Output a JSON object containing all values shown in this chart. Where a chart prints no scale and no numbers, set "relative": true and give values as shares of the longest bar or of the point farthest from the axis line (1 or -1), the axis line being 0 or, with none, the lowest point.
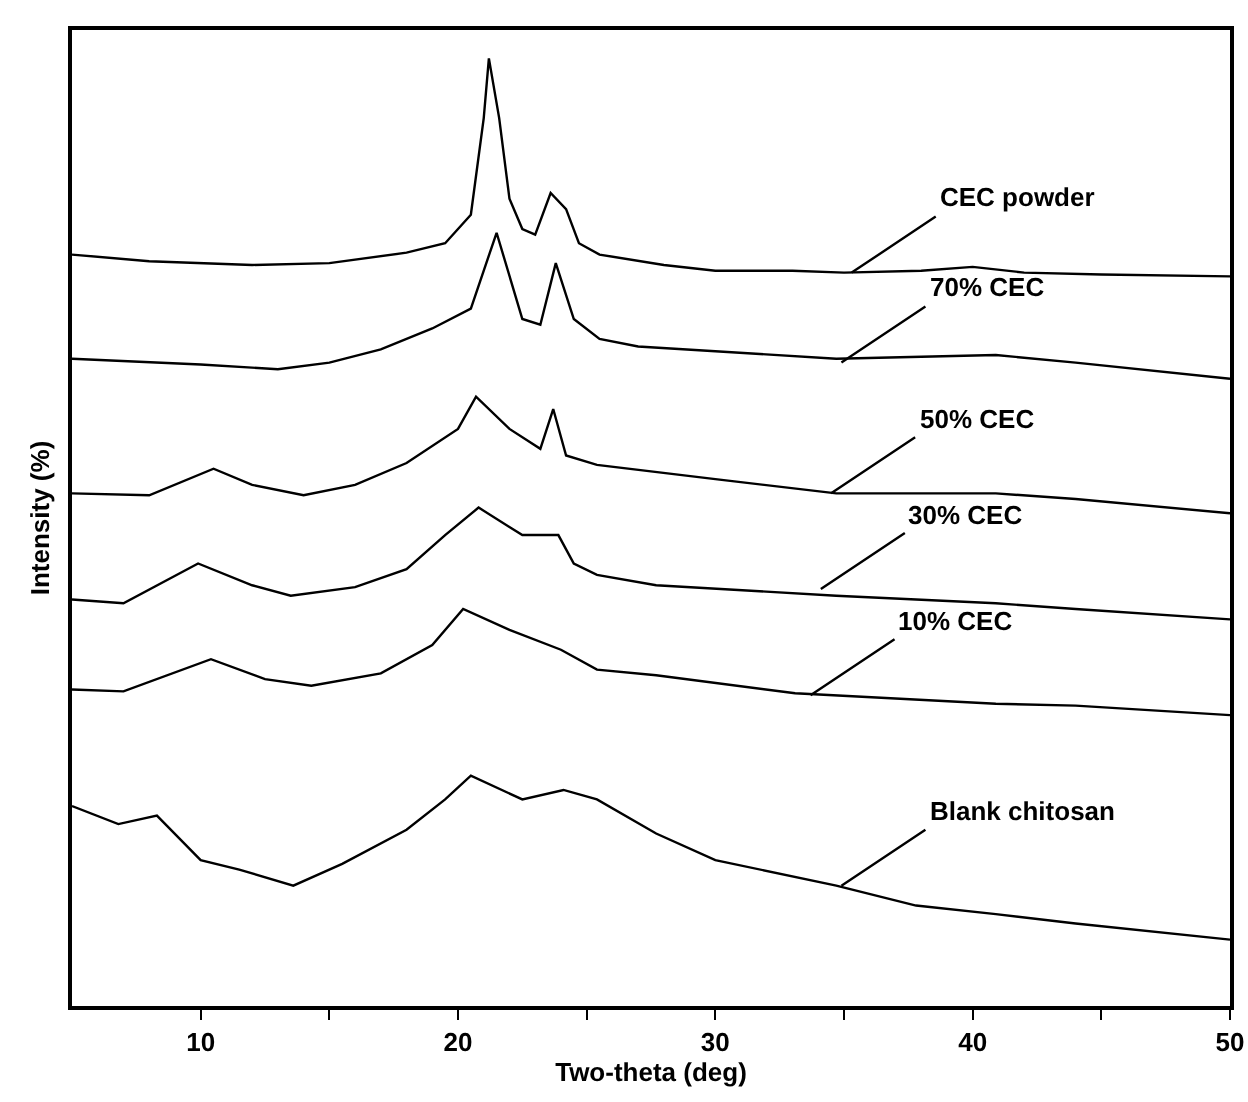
{
  "chart_data": {
    "type": "line",
    "xlabel": "Two-theta (deg)",
    "ylabel": "Intensity (%)",
    "relative": true,
    "xlim": [
      5,
      50
    ],
    "xticks": [
      10,
      {
        "value": 15,
        "label": null
      },
      20,
      {
        "value": 25,
        "label": null
      },
      30,
      {
        "value": 35,
        "label": null
      },
      40,
      {
        "value": 45,
        "label": null
      },
      50
    ],
    "grid": false,
    "marker": "none",
    "line_style": "solid",
    "series": [
      {
        "color": "#000000",
        "x": [
          5,
          8,
          12,
          15,
          18,
          19.5,
          20.5,
          21.0,
          21.2,
          21.6,
          22.0,
          22.5,
          23.0,
          23.6,
          24.2,
          24.7,
          25.5,
          28,
          30,
          33,
          35,
          38,
          40,
          42,
          45,
          50
        ],
        "values": [
          0.793,
          0.786,
          0.782,
          0.784,
          0.795,
          0.805,
          0.835,
          0.937,
          1.0,
          0.937,
          0.852,
          0.82,
          0.814,
          0.858,
          0.841,
          0.805,
          0.793,
          0.782,
          0.776,
          0.776,
          0.774,
          0.776,
          0.78,
          0.774,
          0.772,
          0.77
        ]
      },
      {
        "color": "#000000",
        "x": [
          5,
          10,
          13,
          15,
          17,
          19,
          20.5,
          21.5,
          22.5,
          23.2,
          23.8,
          24.5,
          25.5,
          27,
          30,
          34.7,
          40.9,
          44,
          50
        ],
        "values": [
          0.683,
          0.677,
          0.672,
          0.679,
          0.693,
          0.715,
          0.736,
          0.816,
          0.725,
          0.719,
          0.784,
          0.725,
          0.704,
          0.696,
          0.691,
          0.683,
          0.687,
          0.679,
          0.662
        ]
      },
      {
        "color": "#000000",
        "x": [
          5,
          8,
          10.5,
          12,
          14,
          16,
          18,
          20,
          20.7,
          22,
          23.2,
          23.7,
          24.2,
          25.4,
          30,
          34.7,
          40.9,
          44,
          50
        ],
        "values": [
          0.541,
          0.539,
          0.567,
          0.55,
          0.539,
          0.55,
          0.573,
          0.609,
          0.643,
          0.609,
          0.588,
          0.63,
          0.581,
          0.571,
          0.556,
          0.541,
          0.541,
          0.535,
          0.52
        ]
      },
      {
        "color": "#000000",
        "x": [
          5,
          7,
          9.9,
          12,
          13.5,
          16,
          18,
          19.5,
          20.8,
          22.5,
          23.9,
          24.5,
          25.4,
          27.7,
          34.7,
          40.9,
          44,
          50
        ],
        "values": [
          0.429,
          0.425,
          0.467,
          0.444,
          0.433,
          0.442,
          0.461,
          0.497,
          0.526,
          0.497,
          0.497,
          0.467,
          0.455,
          0.444,
          0.433,
          0.425,
          0.419,
          0.408
        ]
      },
      {
        "color": "#000000",
        "x": [
          5,
          7,
          10.4,
          12.5,
          14.3,
          17,
          19,
          20.2,
          22,
          24,
          25.4,
          27.7,
          33.1,
          40.9,
          44,
          50
        ],
        "values": [
          0.334,
          0.332,
          0.366,
          0.345,
          0.338,
          0.351,
          0.381,
          0.419,
          0.397,
          0.376,
          0.355,
          0.349,
          0.33,
          0.319,
          0.317,
          0.307
        ]
      },
      {
        "color": "#000000",
        "x": [
          5,
          6.8,
          8.3,
          10,
          11.5,
          13.6,
          15.5,
          18,
          19.5,
          20.5,
          22.5,
          24.1,
          25.4,
          27.7,
          30,
          34.7,
          37.8,
          40.9,
          44,
          50
        ],
        "values": [
          0.211,
          0.192,
          0.201,
          0.154,
          0.144,
          0.127,
          0.15,
          0.186,
          0.218,
          0.243,
          0.218,
          0.228,
          0.218,
          0.182,
          0.154,
          0.127,
          0.106,
          0.097,
          0.087,
          0.07
        ]
      }
    ],
    "annotations": [
      {
        "text": "CEC powder",
        "x": 35.3,
        "y": 0.774
      },
      {
        "text": "70% CEC",
        "x": 34.9,
        "y": 0.679
      },
      {
        "text": "50% CEC",
        "x": 34.5,
        "y": 0.541
      },
      {
        "text": "30% CEC",
        "x": 34.1,
        "y": 0.44
      },
      {
        "text": "10% CEC",
        "x": 33.7,
        "y": 0.328
      },
      {
        "text": "Blank chitosan",
        "x": 34.9,
        "y": 0.127
      }
    ]
  }
}
